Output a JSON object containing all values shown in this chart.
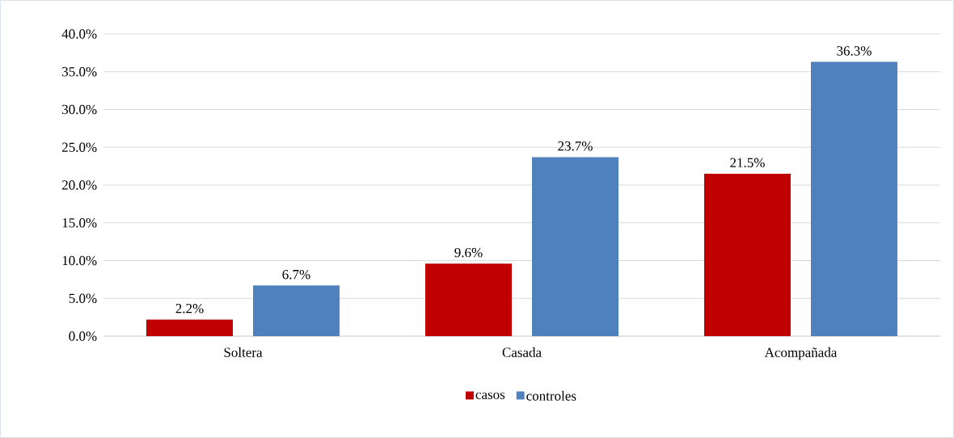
{
  "chart_data": {
    "type": "bar",
    "categories": [
      "Soltera",
      "Casada",
      "Acompañada"
    ],
    "series": [
      {
        "name": "casos",
        "color": "#c00000",
        "values": [
          2.2,
          9.6,
          21.5
        ],
        "value_labels": [
          "2.2%",
          "9.6%",
          "21.5%"
        ]
      },
      {
        "name": "controles",
        "color": "#4f81bd",
        "values": [
          6.7,
          23.7,
          36.3
        ],
        "value_labels": [
          "6.7%",
          "23.7%",
          "36.3%"
        ]
      }
    ],
    "ylim": [
      0,
      40
    ],
    "yticks": [
      {
        "value": 0,
        "label": "0.0%"
      },
      {
        "value": 5,
        "label": "5.0%"
      },
      {
        "value": 10,
        "label": "10.0%"
      },
      {
        "value": 15,
        "label": "15.0%"
      },
      {
        "value": 20,
        "label": "20.0%"
      },
      {
        "value": 25,
        "label": "25.0%"
      },
      {
        "value": 30,
        "label": "30.0%"
      },
      {
        "value": 35,
        "label": "35.0%"
      },
      {
        "value": 40,
        "label": "40.0%"
      }
    ],
    "grid": "y",
    "legend": "bottom"
  }
}
